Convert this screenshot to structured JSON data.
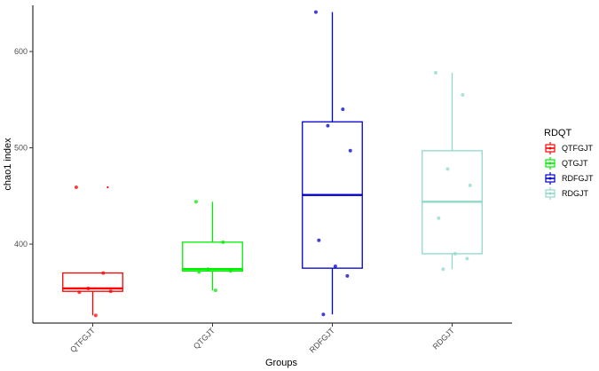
{
  "chart_data": {
    "type": "box",
    "title": "",
    "xlabel": "Groups",
    "ylabel": "chao1 index",
    "ylim": [
      318,
      648
    ],
    "yticks": [
      400,
      500,
      600
    ],
    "grid": false,
    "legend": {
      "title": "RDQT",
      "position": "right",
      "entries": [
        "QTFGJT",
        "QTGJT",
        "RDFGJT",
        "RDGJT"
      ]
    },
    "categories": [
      "QTFGJT",
      "QTGJT",
      "RDFGJT",
      "RDGJT"
    ],
    "series": [
      {
        "name": "QTFGJT",
        "color": "#ff0000",
        "box": {
          "whisker_low": 326,
          "q1": 351,
          "median": 354,
          "q3": 370,
          "whisker_high": 370
        },
        "outliers": [
          459
        ],
        "points": [
          459,
          370,
          354,
          351,
          350,
          326
        ]
      },
      {
        "name": "QTGJT",
        "color": "#00ee00",
        "box": {
          "whisker_low": 352,
          "q1": 372,
          "median": 374,
          "q3": 402,
          "whisker_high": 444
        },
        "outliers": [],
        "points": [
          444,
          402,
          374,
          372,
          371,
          352
        ]
      },
      {
        "name": "RDFGJT",
        "color": "#0000cd",
        "box": {
          "whisker_low": 327,
          "q1": 375,
          "median": 451,
          "q3": 527,
          "whisker_high": 641
        },
        "outliers": [],
        "points": [
          641,
          540,
          523,
          497,
          404,
          377,
          367,
          327
        ]
      },
      {
        "name": "RDGJT",
        "color": "#8fd8cc",
        "box": {
          "whisker_low": 374,
          "q1": 390,
          "median": 444,
          "q3": 497,
          "whisker_high": 578
        },
        "outliers": [],
        "points": [
          578,
          555,
          478,
          461,
          427,
          390,
          385,
          374
        ]
      }
    ]
  }
}
